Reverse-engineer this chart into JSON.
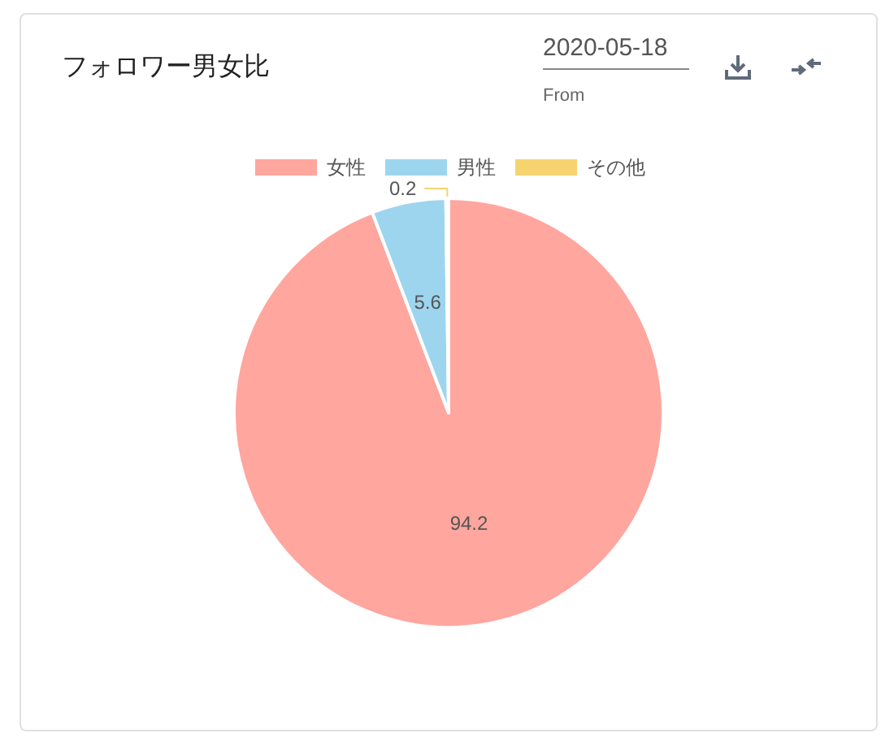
{
  "chart_data": {
    "type": "pie",
    "title": "フォロワー男女比",
    "categories": [
      "女性",
      "男性",
      "その他"
    ],
    "values": [
      94.2,
      5.6,
      0.2
    ],
    "colors": [
      "#ffa69e",
      "#9dd5ee",
      "#f5d470"
    ],
    "legend": "top",
    "data_labels": true,
    "annotations": [
      "2020-05-18",
      "From"
    ]
  }
}
